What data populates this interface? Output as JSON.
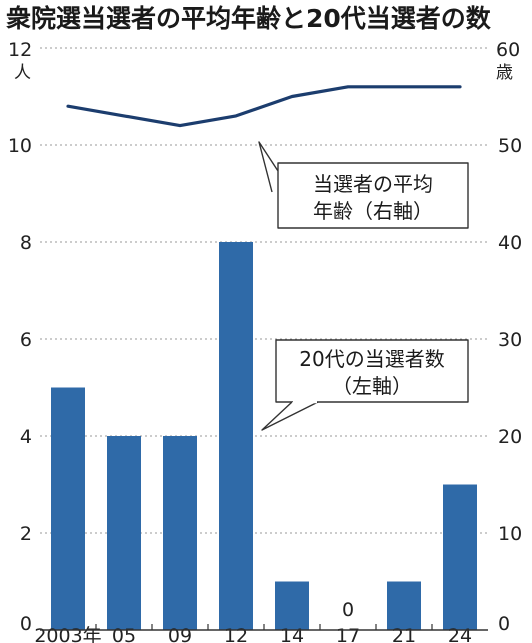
{
  "chart_data": {
    "type": "bar",
    "title": "衆院選当選者の平均年齢と20代当選者の数",
    "categories": [
      "2003年",
      "05",
      "09",
      "12",
      "14",
      "17",
      "21",
      "24"
    ],
    "left_axis": {
      "unit": "人",
      "ylim": [
        0,
        12
      ],
      "ticks": [
        "0",
        "2",
        "4",
        "6",
        "8",
        "10",
        "12"
      ]
    },
    "right_axis": {
      "unit": "歳",
      "ylim": [
        0,
        60
      ],
      "ticks": [
        "0",
        "10",
        "20",
        "30",
        "40",
        "50",
        "60"
      ]
    },
    "series": [
      {
        "name": "20代の当選者数（左軸）",
        "type": "bar",
        "axis": "left",
        "values": [
          5,
          4,
          4,
          8,
          1,
          0,
          1,
          3
        ]
      },
      {
        "name": "当選者の平均年齢（右軸）",
        "type": "line",
        "axis": "right",
        "values": [
          54.0,
          53.0,
          52.0,
          53.0,
          55.0,
          56.0,
          56.0,
          56.0
        ]
      }
    ],
    "annotations": {
      "line_callout": [
        "当選者の平均",
        "年齢（右軸）"
      ],
      "bar_callout": [
        "20代の当選者数",
        "（左軸）"
      ],
      "zero_label": "0"
    },
    "grid": "horizontal-dotted",
    "colors": {
      "bar": "#2f6aa8",
      "line": "#1c3d6e",
      "grid": "#9a9a9a",
      "axis": "#333333"
    }
  }
}
